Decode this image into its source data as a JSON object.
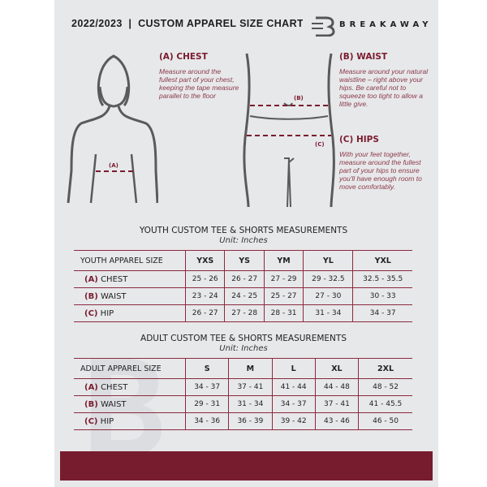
{
  "header": {
    "title": "2022/2023  |  CUSTOM APPAREL SIZE CHART",
    "brand": "BREAKAWAY"
  },
  "colors": {
    "accent": "#7a1c2e",
    "background": "#e7e8ea"
  },
  "guide": {
    "chest": {
      "heading": "(A) CHEST",
      "text": "Measure around the fullest part of your chest, keeping the tape measure parallel to the floor",
      "marker": "(A)"
    },
    "waist": {
      "heading": "(B) WAIST",
      "text": "Measure around your natural waistline – right above your hips. Be careful not to squeeze too tight to allow a little give.",
      "marker": "(B)"
    },
    "hips": {
      "heading": "(C) HIPS",
      "text": "With your feet together, measure around the fullest part of your hips to ensure you'll have enough room to move comfortably.",
      "marker": "(C)"
    }
  },
  "youth": {
    "title": "YOUTH CUSTOM TEE & SHORTS MEASUREMENTS",
    "unit": "Unit: Inches",
    "header": "YOUTH APPAREL SIZE",
    "sizes": [
      "YXS",
      "YS",
      "YM",
      "YL",
      "YXL"
    ],
    "rows": [
      {
        "letter": "(A)",
        "label": "CHEST",
        "values": [
          "25 - 26",
          "26 - 27",
          "27 - 29",
          "29 - 32.5",
          "32.5 - 35.5"
        ]
      },
      {
        "letter": "(B)",
        "label": "WAIST",
        "values": [
          "23 - 24",
          "24 - 25",
          "25 - 27",
          "27 - 30",
          "30 - 33"
        ]
      },
      {
        "letter": "(C)",
        "label": "HIP",
        "values": [
          "26 - 27",
          "27 - 28",
          "28 - 31",
          "31 - 34",
          "34 - 37"
        ]
      }
    ]
  },
  "adult": {
    "title": "ADULT CUSTOM TEE & SHORTS MEASUREMENTS",
    "unit": "Unit: Inches",
    "header": "ADULT APPAREL SIZE",
    "sizes": [
      "S",
      "M",
      "L",
      "XL",
      "2XL"
    ],
    "rows": [
      {
        "letter": "(A)",
        "label": "CHEST",
        "values": [
          "34 - 37",
          "37 - 41",
          "41 - 44",
          "44 - 48",
          "48 - 52"
        ]
      },
      {
        "letter": "(B)",
        "label": "WAIST",
        "values": [
          "29 - 31",
          "31 - 34",
          "34 - 37",
          "37 - 41",
          "41 - 45.5"
        ]
      },
      {
        "letter": "(C)",
        "label": "HIP",
        "values": [
          "34 - 36",
          "36 - 39",
          "39 - 42",
          "43 - 46",
          "46 - 50"
        ]
      }
    ]
  }
}
